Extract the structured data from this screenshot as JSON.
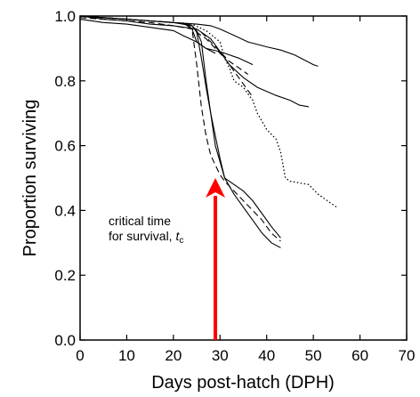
{
  "chart_data": {
    "type": "line",
    "title": "",
    "xlabel": "Days post-hatch (DPH)",
    "ylabel": "Proportion surviving",
    "xlim": [
      0,
      70
    ],
    "ylim": [
      0,
      1.0
    ],
    "xticks": [
      0,
      10,
      20,
      30,
      40,
      50,
      60,
      70
    ],
    "xtick_labels": [
      "0",
      "10",
      "20",
      "30",
      "40",
      "50",
      "60",
      "70"
    ],
    "yticks": [
      0,
      0.2,
      0.4,
      0.6,
      0.8,
      1.0
    ],
    "ytick_labels": [
      "0.0",
      "0.2",
      "0.4",
      "0.6",
      "0.8",
      "1.0"
    ],
    "grid": false,
    "legend": "none",
    "series": [
      {
        "style": "solid",
        "points": [
          [
            0,
            1.0
          ],
          [
            5,
            0.995
          ],
          [
            10,
            0.99
          ],
          [
            15,
            0.985
          ],
          [
            20,
            0.98
          ],
          [
            25,
            0.975
          ],
          [
            28,
            0.97
          ],
          [
            30,
            0.96
          ],
          [
            33,
            0.94
          ],
          [
            36,
            0.92
          ],
          [
            40,
            0.905
          ],
          [
            43,
            0.895
          ],
          [
            46,
            0.88
          ],
          [
            50,
            0.85
          ],
          [
            51,
            0.845
          ]
        ]
      },
      {
        "style": "solid",
        "points": [
          [
            0,
            1.0
          ],
          [
            5,
            0.99
          ],
          [
            10,
            0.985
          ],
          [
            15,
            0.975
          ],
          [
            20,
            0.97
          ],
          [
            25,
            0.96
          ],
          [
            28,
            0.93
          ],
          [
            30,
            0.89
          ],
          [
            32,
            0.85
          ],
          [
            35,
            0.81
          ],
          [
            38,
            0.78
          ],
          [
            42,
            0.755
          ],
          [
            45,
            0.74
          ],
          [
            47,
            0.725
          ],
          [
            49,
            0.72
          ]
        ]
      },
      {
        "style": "dotted",
        "points": [
          [
            0,
            1.0
          ],
          [
            5,
            0.995
          ],
          [
            10,
            0.99
          ],
          [
            15,
            0.985
          ],
          [
            20,
            0.98
          ],
          [
            24,
            0.975
          ],
          [
            27,
            0.955
          ],
          [
            30,
            0.92
          ],
          [
            31,
            0.87
          ],
          [
            32,
            0.84
          ],
          [
            33,
            0.8
          ],
          [
            35,
            0.78
          ],
          [
            36,
            0.76
          ],
          [
            37,
            0.74
          ],
          [
            38,
            0.7
          ],
          [
            40,
            0.65
          ],
          [
            42,
            0.62
          ],
          [
            43,
            0.58
          ],
          [
            44,
            0.5
          ],
          [
            45,
            0.49
          ],
          [
            47,
            0.485
          ],
          [
            49,
            0.48
          ],
          [
            51,
            0.45
          ],
          [
            53,
            0.43
          ],
          [
            55,
            0.41
          ]
        ]
      },
      {
        "style": "dashed",
        "points": [
          [
            0,
            0.995
          ],
          [
            5,
            0.99
          ],
          [
            10,
            0.985
          ],
          [
            15,
            0.98
          ],
          [
            20,
            0.97
          ],
          [
            24,
            0.96
          ],
          [
            27,
            0.93
          ],
          [
            29,
            0.9
          ],
          [
            31,
            0.87
          ],
          [
            33,
            0.83
          ],
          [
            35,
            0.79
          ],
          [
            37,
            0.75
          ]
        ]
      },
      {
        "style": "solid",
        "points": [
          [
            0,
            0.99
          ],
          [
            5,
            0.98
          ],
          [
            10,
            0.975
          ],
          [
            15,
            0.965
          ],
          [
            20,
            0.955
          ],
          [
            22,
            0.94
          ],
          [
            25,
            0.92
          ],
          [
            27,
            0.9
          ],
          [
            29,
            0.885
          ]
        ]
      },
      {
        "style": "solid",
        "points": [
          [
            0,
            1.0
          ],
          [
            5,
            0.995
          ],
          [
            10,
            0.99
          ],
          [
            15,
            0.985
          ],
          [
            20,
            0.98
          ],
          [
            22,
            0.975
          ],
          [
            24,
            0.97
          ],
          [
            25,
            0.955
          ],
          [
            26,
            0.92
          ],
          [
            27,
            0.8
          ],
          [
            28,
            0.7
          ],
          [
            29,
            0.6
          ],
          [
            30,
            0.55
          ],
          [
            31,
            0.5
          ],
          [
            33,
            0.48
          ],
          [
            35,
            0.46
          ],
          [
            37,
            0.43
          ],
          [
            39,
            0.39
          ],
          [
            41,
            0.35
          ],
          [
            43,
            0.315
          ]
        ]
      },
      {
        "style": "dashed",
        "points": [
          [
            0,
            1.0
          ],
          [
            5,
            0.995
          ],
          [
            10,
            0.99
          ],
          [
            15,
            0.985
          ],
          [
            20,
            0.98
          ],
          [
            23,
            0.975
          ],
          [
            24,
            0.96
          ],
          [
            25,
            0.85
          ],
          [
            26,
            0.72
          ],
          [
            27,
            0.63
          ],
          [
            28,
            0.57
          ],
          [
            29,
            0.54
          ],
          [
            30,
            0.51
          ],
          [
            31,
            0.49
          ],
          [
            33,
            0.46
          ],
          [
            35,
            0.43
          ],
          [
            37,
            0.4
          ],
          [
            39,
            0.37
          ],
          [
            41,
            0.33
          ],
          [
            43,
            0.305
          ]
        ]
      },
      {
        "style": "solid",
        "points": [
          [
            0,
            1.0
          ],
          [
            5,
            0.995
          ],
          [
            10,
            0.99
          ],
          [
            15,
            0.985
          ],
          [
            20,
            0.98
          ],
          [
            23,
            0.975
          ],
          [
            24,
            0.97
          ],
          [
            25,
            0.95
          ],
          [
            26,
            0.87
          ],
          [
            27,
            0.78
          ],
          [
            28,
            0.7
          ],
          [
            29,
            0.63
          ],
          [
            30,
            0.56
          ],
          [
            31,
            0.5
          ],
          [
            33,
            0.45
          ],
          [
            35,
            0.41
          ],
          [
            37,
            0.37
          ],
          [
            39,
            0.33
          ],
          [
            41,
            0.3
          ],
          [
            43,
            0.285
          ]
        ]
      },
      {
        "style": "solid",
        "points": [
          [
            22,
            0.98
          ],
          [
            24,
            0.96
          ],
          [
            25,
            0.92
          ],
          [
            27,
            0.9
          ],
          [
            30,
            0.89
          ],
          [
            34,
            0.87
          ],
          [
            37,
            0.85
          ]
        ]
      },
      {
        "style": "dashed",
        "points": [
          [
            26,
            0.95
          ],
          [
            28,
            0.92
          ],
          [
            30,
            0.89
          ],
          [
            32,
            0.86
          ],
          [
            34,
            0.84
          ],
          [
            36,
            0.82
          ]
        ]
      }
    ],
    "annotation": {
      "line1": "critical time",
      "line2": "for survival, ",
      "symbol": "t",
      "subscript": "c",
      "arrow_x": 29,
      "arrow_from_y": 0.0,
      "arrow_to_y": 0.5,
      "arrow_color": "#ff0000"
    }
  }
}
